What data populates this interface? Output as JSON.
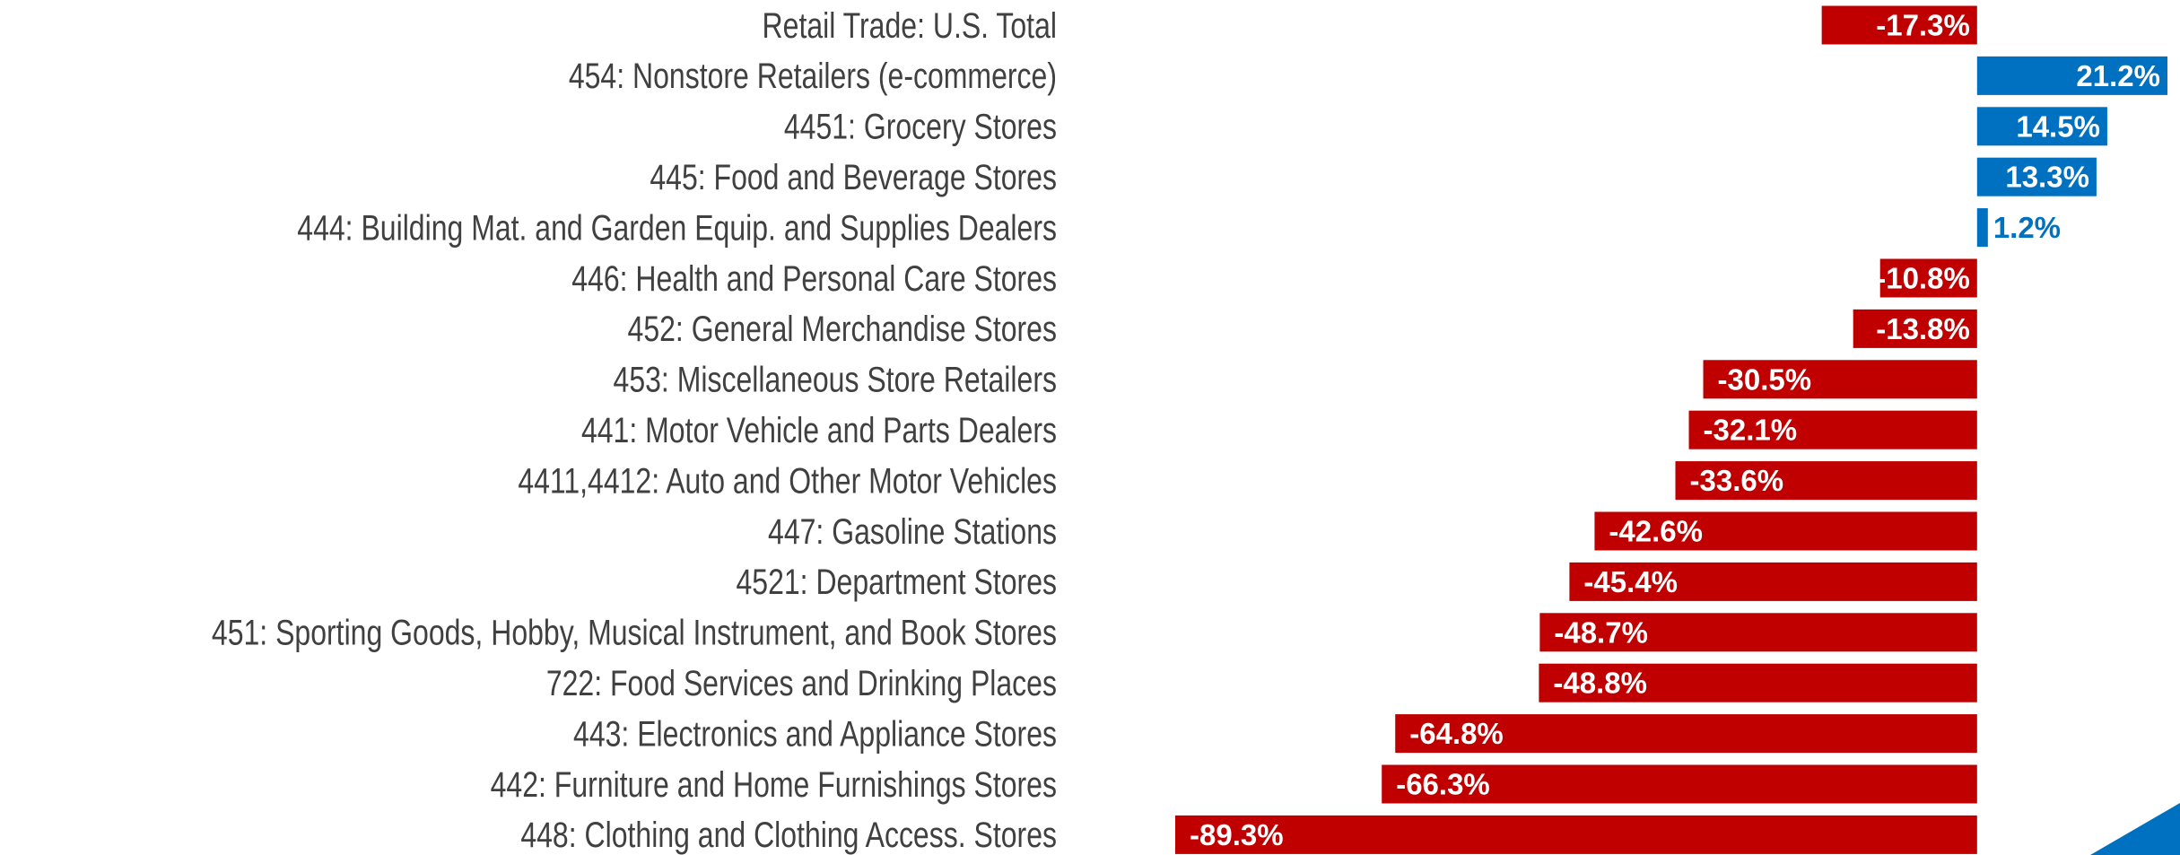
{
  "chart_data": {
    "type": "hbar",
    "categories": [
      "Retail Trade: U.S. Total",
      "454: Nonstore Retailers (e-commerce)",
      "4451: Grocery Stores",
      "445: Food and Beverage Stores",
      "444: Building Mat. and Garden Equip. and Supplies Dealers",
      "446: Health and Personal Care Stores",
      "452: General Merchandise Stores",
      "453: Miscellaneous Store Retailers",
      "441: Motor Vehicle and Parts Dealers",
      "4411,4412: Auto and Other Motor Vehicles",
      "447: Gasoline Stations",
      "4521: Department Stores",
      "451: Sporting Goods, Hobby, Musical Instrument, and Book Stores",
      "722: Food Services and Drinking Places",
      "443: Electronics and Appliance Stores",
      "442: Furniture and Home Furnishings Stores",
      "448: Clothing and Clothing Access. Stores"
    ],
    "values": [
      -17.3,
      21.2,
      14.5,
      13.3,
      1.2,
      -10.8,
      -13.8,
      -30.5,
      -32.1,
      -33.6,
      -42.6,
      -45.4,
      -48.7,
      -48.8,
      -64.8,
      -66.3,
      -89.3
    ],
    "value_labels": [
      "-17.3%",
      "21.2%",
      "14.5%",
      "13.3%",
      "1.2%",
      "-10.8%",
      "-13.8%",
      "-30.5%",
      "-32.1%",
      "-33.6%",
      "-42.6%",
      "-45.4%",
      "-48.7%",
      "-48.8%",
      "-64.8%",
      "-66.3%",
      "-89.3%"
    ],
    "positive_color": "#0070c0",
    "negative_color": "#c00000",
    "xlim": [
      -90,
      22
    ]
  }
}
